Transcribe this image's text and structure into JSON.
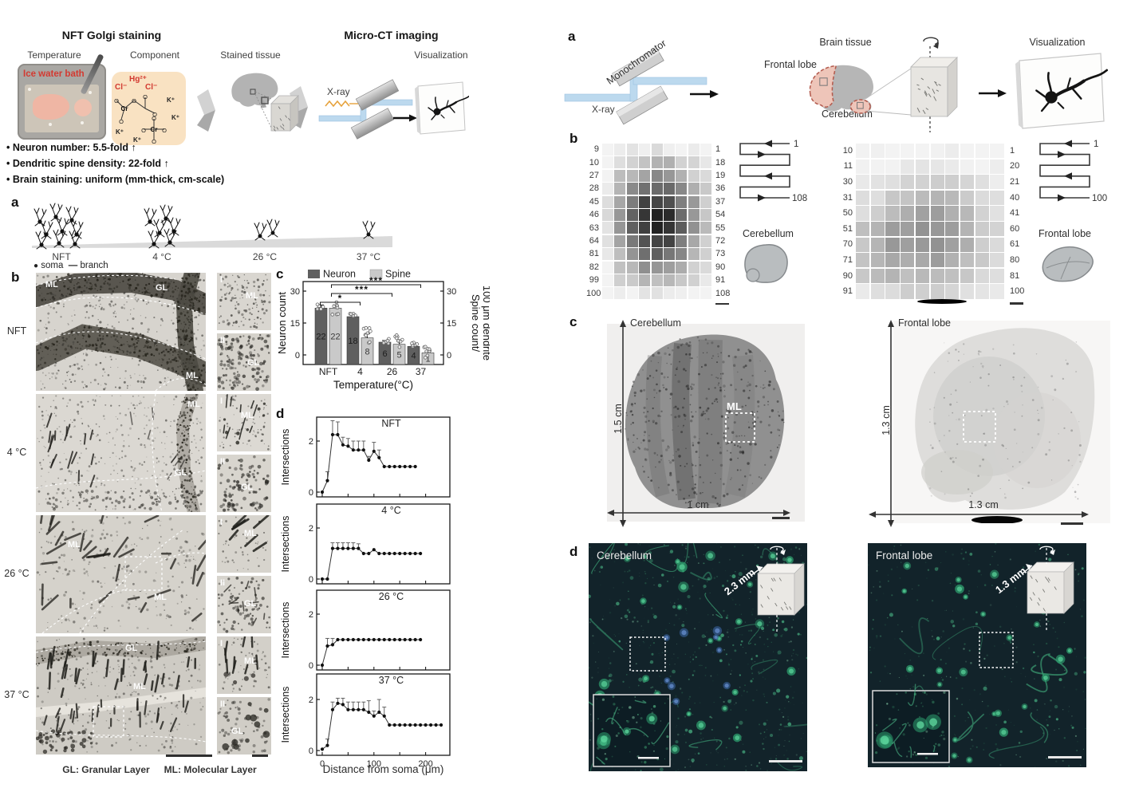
{
  "figure_left": {
    "golgi_title": "NFT Golgi staining",
    "microct_title": "Micro-CT imaging",
    "step_temperature": "Temperature",
    "step_component": "Component",
    "step_stained": "Stained tissue",
    "step_visualization": "Visualization",
    "ice_water_bath": "Ice water bath",
    "xray_label": "X-ray",
    "chem": {
      "hg": "Hg²⁺",
      "cl_left": "Cl⁻",
      "cl_right": "Cl⁻",
      "k": "K⁺",
      "cr": "Cr",
      "o": "O"
    },
    "bullets": [
      "Neuron number: 5.5-fold ↑",
      "Dendritic spine density: 22-fold ↑",
      "Brain staining: uniform (mm-thick, cm-scale)"
    ],
    "panel_a": {
      "label": "a",
      "conditions": [
        "NFT",
        "4 °C",
        "26 °C",
        "37 °C"
      ],
      "legend_soma": "soma",
      "legend_branch": "branch"
    },
    "panel_b": {
      "label": "b",
      "rows": [
        "NFT",
        "4 °C",
        "26 °C",
        "37 °C"
      ],
      "ml": "ML",
      "gl": "GL",
      "inset1": "I",
      "inset2": "II",
      "caption_gl": "GL: Granular Layer",
      "caption_ml": "ML: Molecular Layer"
    },
    "panel_c_label": "c",
    "panel_d_label": "d"
  },
  "chart_data": [
    {
      "type": "bar",
      "categories": [
        "NFT",
        "4",
        "26",
        "37"
      ],
      "series": [
        {
          "name": "Neuron",
          "color": "#5f5f5f",
          "values": [
            22,
            18,
            6,
            4
          ],
          "errors": [
            1.5,
            1.2,
            0.8,
            0.6
          ]
        },
        {
          "name": "Spine",
          "color": "#c9c9c9",
          "values": [
            22,
            8,
            5,
            1
          ],
          "errors": [
            1.5,
            2.0,
            1.5,
            0.5
          ]
        }
      ],
      "bar_labels": [
        [
          "22",
          "18",
          "6",
          "4"
        ],
        [
          "22",
          "8",
          "5",
          "1"
        ]
      ],
      "ylabel_left": "Neuron count",
      "ylabel_right_line1": "Spine count/",
      "ylabel_right_line2": "100 μm dendrite",
      "xlabel": "Temperature(°C)",
      "yticks": [
        0,
        15,
        30
      ],
      "ylim": [
        0,
        33
      ],
      "significance": [
        {
          "label": "*",
          "x1": 0,
          "x2": 1,
          "row": 0
        },
        {
          "label": "***",
          "x1": 0,
          "x2": 2,
          "row": 1
        },
        {
          "label": "***",
          "x1": 0,
          "x2": 3,
          "row": 2
        }
      ]
    },
    {
      "type": "line",
      "ylabel": "Intersections",
      "xlabel": "Distance from soma (μm)",
      "xticks": [
        0,
        100,
        200
      ],
      "yticks": [
        0,
        2
      ],
      "ylim": [
        0,
        2.9
      ],
      "xlim": [
        -10,
        245
      ],
      "subplots": [
        {
          "title": "NFT",
          "x": [
            0,
            10,
            20,
            30,
            40,
            50,
            60,
            70,
            80,
            90,
            100,
            110,
            120,
            130,
            140,
            150,
            160,
            170,
            180
          ],
          "y": [
            0,
            0.45,
            2.25,
            2.25,
            1.85,
            1.8,
            1.65,
            1.65,
            1.65,
            1.25,
            1.6,
            1.35,
            1,
            1,
            1,
            1,
            1,
            1,
            1
          ],
          "err": [
            0,
            0.35,
            0.55,
            0.5,
            0.3,
            0.3,
            0.35,
            0.35,
            0.35,
            0.15,
            0.35,
            0.3,
            0,
            0,
            0,
            0,
            0,
            0,
            0
          ]
        },
        {
          "title": "4 °C",
          "x": [
            0,
            10,
            20,
            30,
            40,
            50,
            60,
            70,
            80,
            90,
            100,
            110,
            120,
            130,
            140,
            150,
            160,
            170,
            180,
            190
          ],
          "y": [
            0,
            0,
            1.2,
            1.2,
            1.2,
            1.2,
            1.2,
            1.2,
            1,
            1,
            1.15,
            1,
            1,
            1,
            1,
            1,
            1,
            1,
            1,
            1
          ],
          "err": [
            0,
            0,
            0.22,
            0.22,
            0.22,
            0.22,
            0.22,
            0.18,
            0,
            0,
            0,
            0,
            0,
            0,
            0,
            0,
            0,
            0,
            0,
            0
          ]
        },
        {
          "title": "26 °C",
          "x": [
            0,
            10,
            20,
            30,
            40,
            50,
            60,
            70,
            80,
            90,
            100,
            110,
            120,
            130,
            140,
            150,
            160,
            170,
            180,
            190
          ],
          "y": [
            0,
            0.75,
            0.8,
            1,
            1,
            1,
            1,
            1,
            1,
            1,
            1,
            1,
            1,
            1,
            1,
            1,
            1,
            1,
            1,
            1
          ],
          "err": [
            0,
            0.3,
            0.25,
            0,
            0,
            0,
            0,
            0,
            0,
            0,
            0,
            0,
            0,
            0,
            0,
            0,
            0,
            0,
            0,
            0
          ]
        },
        {
          "title": "37 °C",
          "x": [
            0,
            10,
            20,
            30,
            40,
            50,
            60,
            70,
            80,
            90,
            100,
            110,
            120,
            130,
            140,
            150,
            160,
            170,
            180,
            190,
            200,
            210,
            220,
            230
          ],
          "y": [
            0.05,
            0.2,
            1.6,
            1.85,
            1.8,
            1.6,
            1.6,
            1.6,
            1.6,
            1.5,
            1.35,
            1.5,
            1.35,
            1,
            1,
            1,
            1,
            1,
            1,
            1,
            1,
            1,
            1,
            1
          ],
          "err": [
            0,
            0.25,
            0.3,
            0.2,
            0.25,
            0.3,
            0.3,
            0.3,
            0.3,
            0.45,
            0.2,
            0.5,
            0.35,
            0,
            0,
            0,
            0,
            0,
            0,
            0,
            0,
            0,
            0,
            0
          ]
        }
      ]
    }
  ],
  "figure_right": {
    "panel_a": {
      "label": "a",
      "monochromator": "Monochromator",
      "xray": "X-ray",
      "brain_tissue": "Brain tissue",
      "frontal_lobe": "Frontal lobe",
      "cerebellum": "Cerebellum",
      "visualization": "Visualization"
    },
    "panel_b": {
      "label": "b",
      "grids": [
        {
          "name": "Cerebellum",
          "left_numbers": [
            "9",
            "10",
            "27",
            "28",
            "45",
            "46",
            "63",
            "64",
            "81",
            "82",
            "99",
            "100"
          ],
          "right_numbers": [
            "1",
            "18",
            "19",
            "36",
            "37",
            "54",
            "55",
            "72",
            "73",
            "90",
            "91",
            "108"
          ],
          "scan_start": "1",
          "scan_end": "108"
        },
        {
          "name": "Frontal lobe",
          "left_numbers": [
            "10",
            "11",
            "30",
            "31",
            "50",
            "51",
            "70",
            "71",
            "90",
            "91"
          ],
          "right_numbers": [
            "1",
            "20",
            "21",
            "40",
            "41",
            "60",
            "61",
            "80",
            "81",
            "100"
          ],
          "scan_start": "1",
          "scan_end": "100"
        }
      ]
    },
    "panel_c": {
      "label": "c",
      "cerebellum": {
        "name": "Cerebellum",
        "height": "1.5 cm",
        "width": "1 cm",
        "roi": "ML"
      },
      "frontal": {
        "name": "Frontal lobe",
        "height": "1.3 cm",
        "width": "1.3 cm"
      }
    },
    "panel_d": {
      "label": "d",
      "cerebellum": {
        "name": "Cerebellum",
        "cube": "2.3 mm"
      },
      "frontal": {
        "name": "Frontal lobe",
        "cube": "1.3 mm"
      }
    }
  }
}
